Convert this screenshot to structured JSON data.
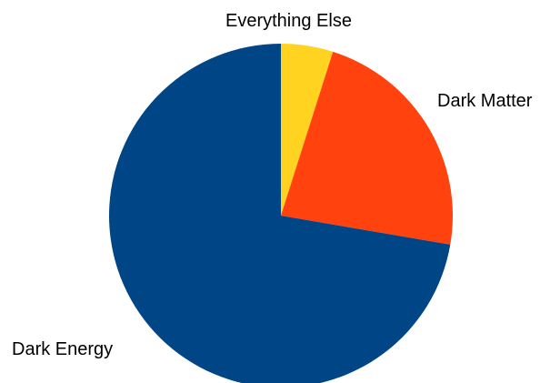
{
  "chart_data": {
    "type": "pie",
    "title": "",
    "slices": [
      {
        "label": "Everything Else",
        "value": 4.9,
        "color": "#FFD320"
      },
      {
        "label": "Dark Matter",
        "value": 22.8,
        "color": "#FF420E"
      },
      {
        "label": "Dark Energy",
        "value": 72.3,
        "color": "#004586"
      }
    ],
    "start": "12 o'clock",
    "direction": "clockwise",
    "legend": "none"
  }
}
